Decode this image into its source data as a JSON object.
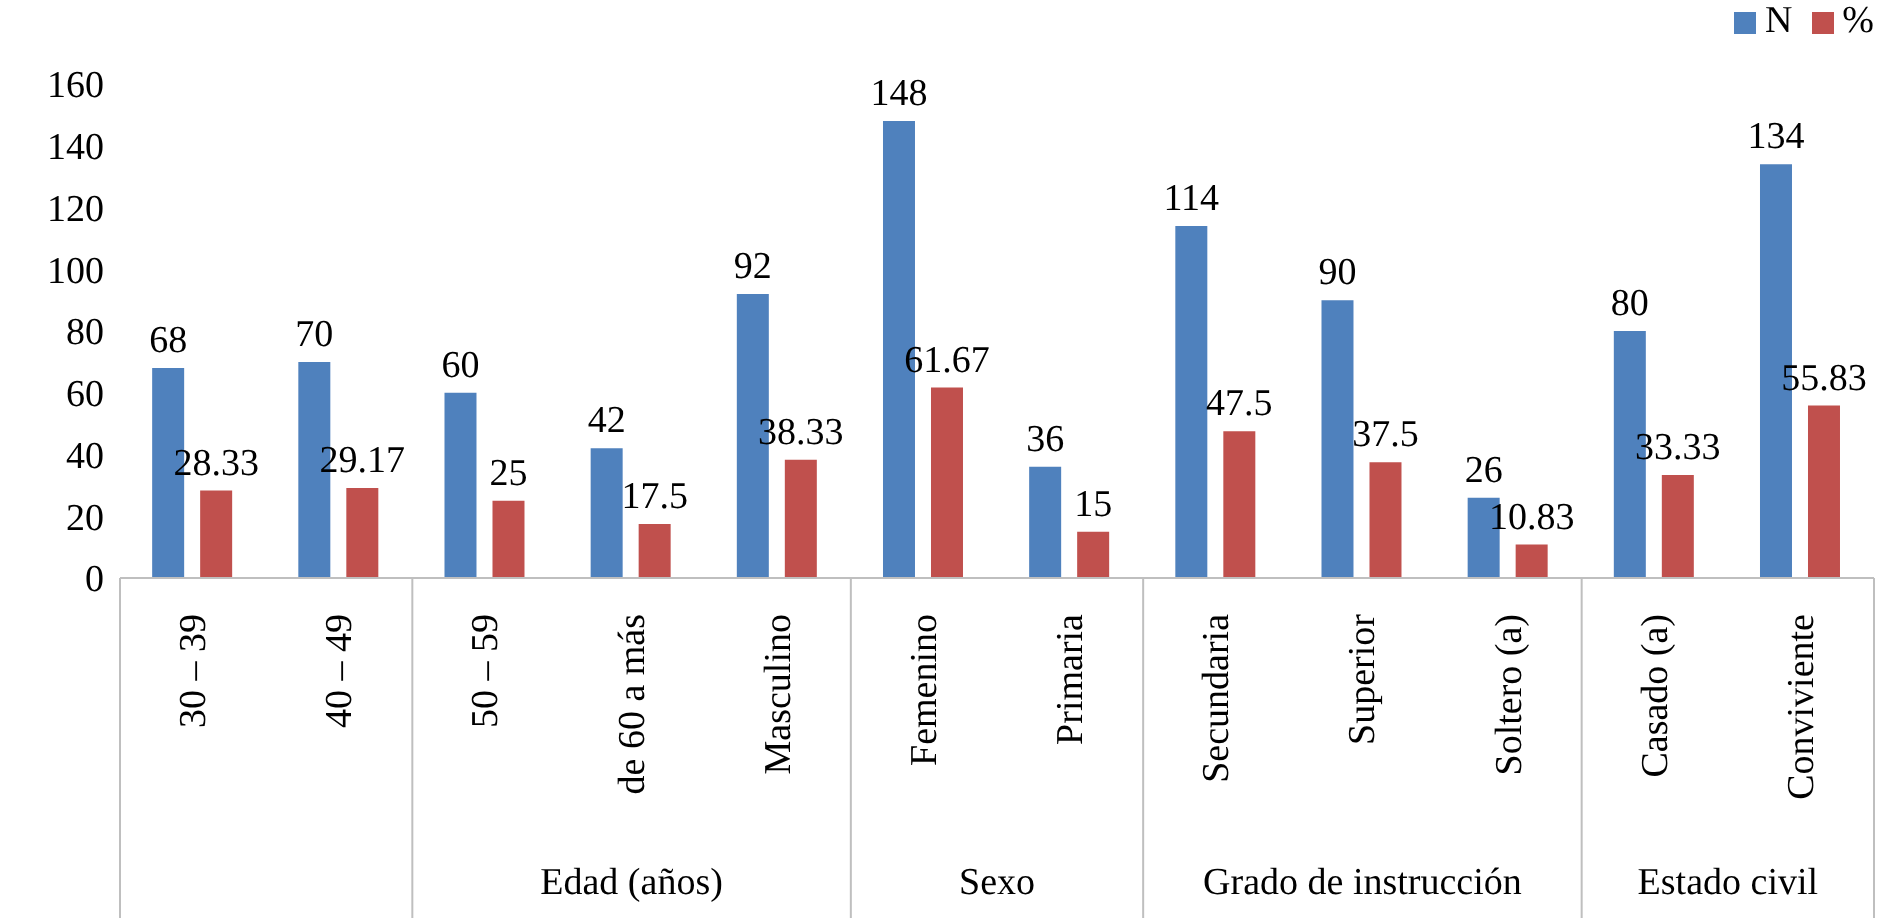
{
  "chart_data": {
    "type": "bar",
    "categories": [
      "30 – 39",
      "40 – 49",
      "50 – 59",
      "de 60 a más",
      "Masculino",
      "Femenino",
      "Primaria",
      "Secundaria",
      "Superior",
      "Soltero (a)",
      "Casado (a)",
      "Conviviente"
    ],
    "series": [
      {
        "name": "N",
        "color": "#4f81bd",
        "values": [
          68,
          70,
          60,
          42,
          92,
          148,
          36,
          114,
          90,
          26,
          80,
          134
        ]
      },
      {
        "name": "%",
        "color": "#c0504d",
        "values": [
          28.33,
          29.17,
          25,
          17.5,
          38.33,
          61.67,
          15,
          47.5,
          37.5,
          10.83,
          33.33,
          55.83
        ]
      }
    ],
    "ylim": [
      0,
      160
    ],
    "yticks": [
      0,
      20,
      40,
      60,
      80,
      100,
      120,
      140,
      160
    ],
    "data_labels": true,
    "legend": "top right",
    "grid": false,
    "annotations": [
      "Edad (años)",
      "Sexo",
      "Grado de instrucción",
      "Estado civil"
    ]
  }
}
